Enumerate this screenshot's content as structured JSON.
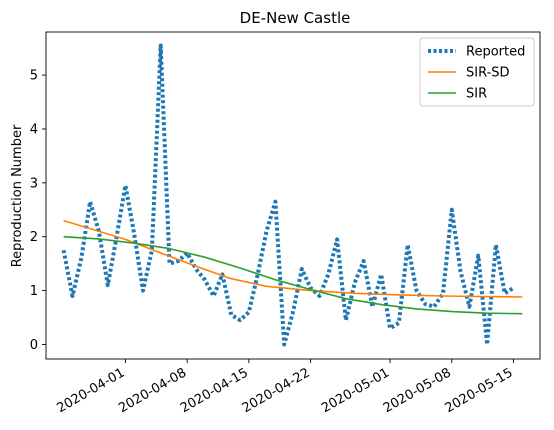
{
  "chart_data": {
    "type": "line",
    "title": "DE-New Castle",
    "xlabel": "",
    "ylabel": "Reproduction Number",
    "x_tick_labels": [
      "2020-04-01",
      "2020-04-08",
      "2020-04-15",
      "2020-04-22",
      "2020-05-01",
      "2020-05-08",
      "2020-05-15"
    ],
    "x_tick_dates": [
      "2020-04-01",
      "2020-04-08",
      "2020-04-15",
      "2020-04-22",
      "2020-05-01",
      "2020-05-08",
      "2020-05-15"
    ],
    "xlim": [
      "2020-03-23",
      "2020-05-18"
    ],
    "y_ticks": [
      0,
      1,
      2,
      3,
      4,
      5
    ],
    "ylim": [
      -0.27,
      5.8
    ],
    "grid": false,
    "legend_position": "top-right",
    "legend": [
      "Reported",
      "SIR-SD",
      "SIR"
    ],
    "colors": {
      "Reported": "#1f77b4",
      "SIR-SD": "#ff7f0e",
      "SIR": "#2ca02c"
    },
    "series": [
      {
        "name": "Reported",
        "style": "dotted",
        "points": [
          [
            "2020-03-25",
            1.75
          ],
          [
            "2020-03-26",
            0.9
          ],
          [
            "2020-03-27",
            1.6
          ],
          [
            "2020-03-28",
            2.65
          ],
          [
            "2020-03-29",
            2.1
          ],
          [
            "2020-03-30",
            1.1
          ],
          [
            "2020-03-31",
            2.0
          ],
          [
            "2020-04-01",
            2.95
          ],
          [
            "2020-04-02",
            2.05
          ],
          [
            "2020-04-03",
            1.0
          ],
          [
            "2020-04-04",
            1.75
          ],
          [
            "2020-04-05",
            5.55
          ],
          [
            "2020-04-06",
            1.5
          ],
          [
            "2020-04-07",
            1.55
          ],
          [
            "2020-04-08",
            1.7
          ],
          [
            "2020-04-09",
            1.4
          ],
          [
            "2020-04-10",
            1.2
          ],
          [
            "2020-04-11",
            0.9
          ],
          [
            "2020-04-12",
            1.3
          ],
          [
            "2020-04-13",
            0.55
          ],
          [
            "2020-04-14",
            0.45
          ],
          [
            "2020-04-15",
            0.6
          ],
          [
            "2020-04-16",
            1.3
          ],
          [
            "2020-04-17",
            2.1
          ],
          [
            "2020-04-18",
            2.65
          ],
          [
            "2020-04-19",
            0.0
          ],
          [
            "2020-04-20",
            0.6
          ],
          [
            "2020-04-21",
            1.4
          ],
          [
            "2020-04-22",
            1.05
          ],
          [
            "2020-04-23",
            0.9
          ],
          [
            "2020-04-24",
            1.3
          ],
          [
            "2020-04-25",
            1.95
          ],
          [
            "2020-04-26",
            0.45
          ],
          [
            "2020-04-27",
            1.15
          ],
          [
            "2020-04-28",
            1.55
          ],
          [
            "2020-04-29",
            0.7
          ],
          [
            "2020-04-30",
            1.3
          ],
          [
            "2020-05-01",
            0.3
          ],
          [
            "2020-05-02",
            0.4
          ],
          [
            "2020-05-03",
            1.85
          ],
          [
            "2020-05-04",
            1.0
          ],
          [
            "2020-05-05",
            0.75
          ],
          [
            "2020-05-06",
            0.7
          ],
          [
            "2020-05-07",
            0.95
          ],
          [
            "2020-05-08",
            2.5
          ],
          [
            "2020-05-09",
            1.35
          ],
          [
            "2020-05-10",
            0.7
          ],
          [
            "2020-05-11",
            1.65
          ],
          [
            "2020-05-12",
            0.0
          ],
          [
            "2020-05-13",
            1.85
          ],
          [
            "2020-05-14",
            0.95
          ],
          [
            "2020-05-15",
            1.05
          ]
        ]
      },
      {
        "name": "SIR-SD",
        "style": "solid",
        "points": [
          [
            "2020-03-25",
            2.3
          ],
          [
            "2020-03-28",
            2.15
          ],
          [
            "2020-04-01",
            1.95
          ],
          [
            "2020-04-05",
            1.7
          ],
          [
            "2020-04-09",
            1.45
          ],
          [
            "2020-04-13",
            1.22
          ],
          [
            "2020-04-17",
            1.08
          ],
          [
            "2020-04-22",
            1.0
          ],
          [
            "2020-04-27",
            0.95
          ],
          [
            "2020-05-02",
            0.92
          ],
          [
            "2020-05-07",
            0.9
          ],
          [
            "2020-05-11",
            0.89
          ],
          [
            "2020-05-16",
            0.88
          ]
        ]
      },
      {
        "name": "SIR",
        "style": "solid",
        "points": [
          [
            "2020-03-25",
            2.0
          ],
          [
            "2020-03-29",
            1.96
          ],
          [
            "2020-04-02",
            1.88
          ],
          [
            "2020-04-06",
            1.78
          ],
          [
            "2020-04-10",
            1.62
          ],
          [
            "2020-04-14",
            1.42
          ],
          [
            "2020-04-18",
            1.2
          ],
          [
            "2020-04-22",
            1.02
          ],
          [
            "2020-04-26",
            0.85
          ],
          [
            "2020-04-30",
            0.74
          ],
          [
            "2020-05-04",
            0.66
          ],
          [
            "2020-05-08",
            0.61
          ],
          [
            "2020-05-12",
            0.58
          ],
          [
            "2020-05-16",
            0.57
          ]
        ]
      }
    ]
  }
}
